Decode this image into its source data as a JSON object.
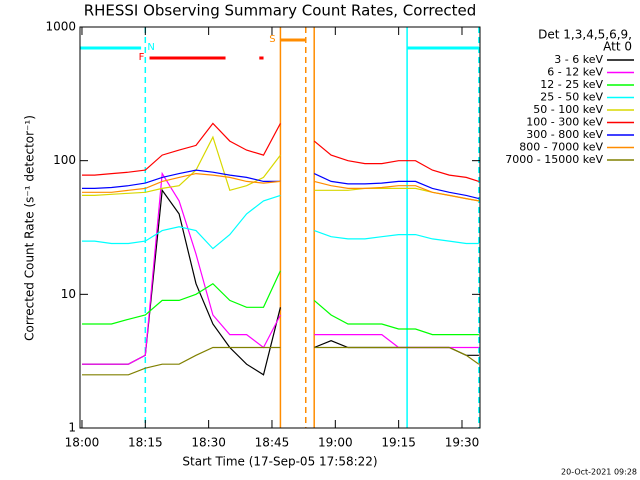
{
  "chart_data": {
    "type": "line",
    "title": "RHESSI Observing Summary Count Rates, Corrected",
    "xlabel": "Start Time (17-Sep-05 17:58:22)",
    "ylabel": "Corrected Count Rate (s⁻¹ detector⁻¹)",
    "legend_title": [
      "Det 1,3,4,5,6,9,",
      "Att 0"
    ],
    "legend_position": "right",
    "log_y": true,
    "grid": false,
    "ylim": [
      1,
      1000
    ],
    "yticks": [
      1,
      10,
      100,
      1000
    ],
    "xlim": [
      "17:59:32",
      "19:34:16"
    ],
    "xticks": [
      "18:00",
      "18:15",
      "18:30",
      "18:45",
      "19:00",
      "19:15",
      "19:30"
    ],
    "x": [
      "18:00",
      "18:03",
      "18:07",
      "18:11",
      "18:15",
      "18:19",
      "18:23",
      "18:27",
      "18:31",
      "18:35",
      "18:39",
      "18:43",
      "18:47",
      "18:51",
      "18:55",
      "18:59",
      "19:03",
      "19:07",
      "19:11",
      "19:15",
      "19:19",
      "19:23",
      "19:27",
      "19:31",
      "19:34"
    ],
    "series": [
      {
        "name": "3 - 6 keV",
        "color": "#000000",
        "values": [
          3,
          3,
          3,
          3,
          3.5,
          60,
          40,
          12,
          6,
          4,
          3,
          2.5,
          8,
          null,
          4,
          4.5,
          4,
          4,
          4,
          4,
          4,
          4,
          4,
          3.5,
          3.5
        ]
      },
      {
        "name": "6 - 12 keV",
        "color": "#ff00ff",
        "values": [
          3,
          3,
          3,
          3,
          3.5,
          80,
          50,
          20,
          7,
          5,
          5,
          4,
          7,
          null,
          5,
          5,
          5,
          5,
          5,
          4,
          4,
          4,
          4,
          4,
          4
        ]
      },
      {
        "name": "12 - 25 keV",
        "color": "#00ff00",
        "values": [
          6,
          6,
          6,
          6.5,
          7,
          9,
          9,
          10,
          12,
          9,
          8,
          8,
          15,
          null,
          9,
          7,
          6,
          6,
          6,
          5.5,
          5.5,
          5,
          5,
          5,
          5
        ]
      },
      {
        "name": "25 - 50 keV",
        "color": "#00ffff",
        "values": [
          25,
          25,
          24,
          24,
          25,
          30,
          32,
          30,
          22,
          28,
          40,
          50,
          55,
          null,
          30,
          27,
          26,
          26,
          27,
          28,
          28,
          26,
          25,
          24,
          24
        ]
      },
      {
        "name": "50 - 100 keV",
        "color": "#d8d800",
        "values": [
          55,
          55,
          56,
          57,
          58,
          62,
          65,
          85,
          150,
          60,
          65,
          75,
          110,
          null,
          60,
          60,
          60,
          62,
          62,
          62,
          62,
          58,
          55,
          52,
          50
        ]
      },
      {
        "name": "100 - 300 keV",
        "color": "#ff0000",
        "values": [
          78,
          78,
          80,
          82,
          85,
          110,
          120,
          130,
          190,
          140,
          120,
          110,
          190,
          null,
          140,
          110,
          100,
          95,
          95,
          100,
          100,
          85,
          78,
          75,
          70
        ]
      },
      {
        "name": "300 - 800 keV",
        "color": "#0000ff",
        "values": [
          62,
          62,
          63,
          65,
          68,
          75,
          80,
          85,
          82,
          78,
          75,
          70,
          70,
          null,
          80,
          70,
          67,
          67,
          68,
          70,
          70,
          62,
          58,
          55,
          52
        ]
      },
      {
        "name": "800 - 7000 keV",
        "color": "#ff8c00",
        "values": [
          58,
          58,
          58,
          60,
          62,
          70,
          75,
          80,
          78,
          75,
          70,
          68,
          70,
          null,
          70,
          65,
          62,
          62,
          63,
          65,
          65,
          58,
          55,
          52,
          50
        ]
      },
      {
        "name": "7000 - 15000 keV",
        "color": "#808000",
        "values": [
          2.5,
          2.5,
          2.5,
          2.5,
          2.8,
          3,
          3,
          3.5,
          4,
          4,
          4,
          4,
          4,
          null,
          4,
          4,
          4,
          4,
          4,
          4,
          4,
          4,
          4,
          3.5,
          3
        ]
      }
    ],
    "flags": [
      {
        "label": "N",
        "color": "#00ffff",
        "intervals": [
          [
            "17:59:32",
            "18:14"
          ],
          [
            "19:17",
            "19:34"
          ]
        ],
        "lines": [
          [
            "18:15",
            "dashed"
          ],
          [
            "19:17",
            "solid"
          ],
          [
            "19:34",
            "dashed"
          ]
        ]
      },
      {
        "label": "F",
        "color": "#ff0000",
        "intervals": [
          [
            "18:16",
            "18:34"
          ],
          [
            "18:42",
            "18:43"
          ]
        ],
        "lines": []
      },
      {
        "label": "S",
        "color": "#ff8c00",
        "intervals": [
          [
            "18:47",
            "18:53"
          ]
        ],
        "lines": [
          [
            "18:47",
            "solid"
          ],
          [
            "18:53",
            "dashed"
          ],
          [
            "18:55",
            "solid"
          ]
        ]
      }
    ]
  },
  "timestamp": "20-Oct-2021 09:28"
}
